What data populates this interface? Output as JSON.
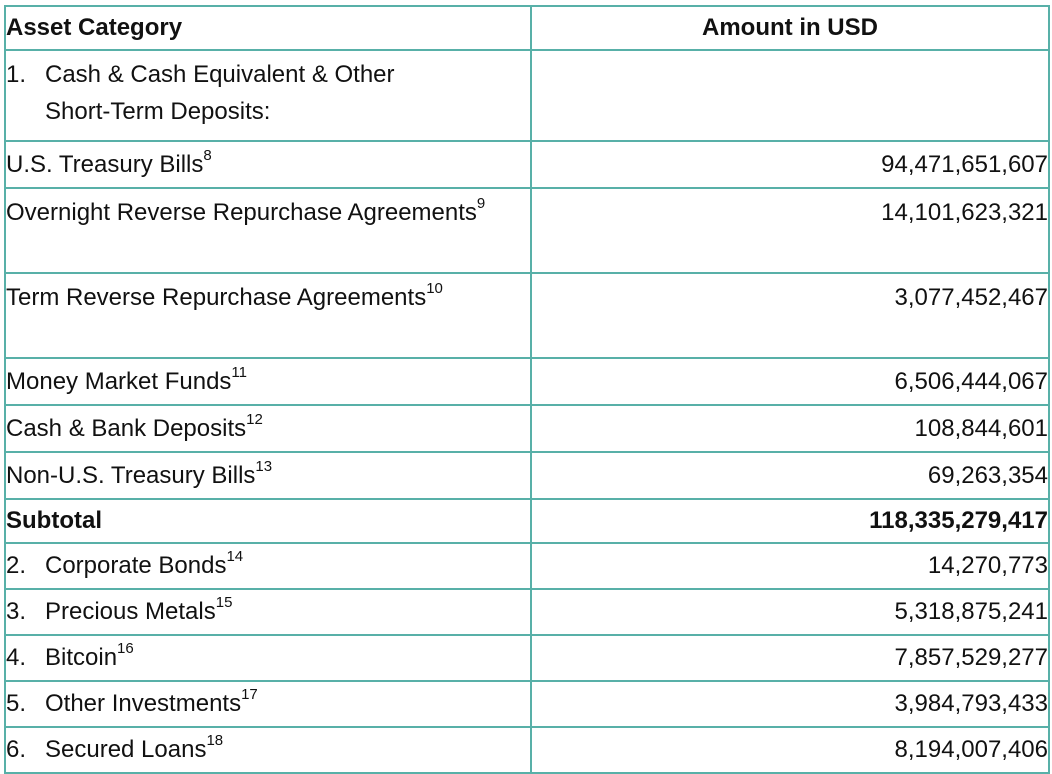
{
  "table": {
    "headers": {
      "category": "Asset Category",
      "amount": "Amount in USD"
    },
    "rows": [
      {
        "number": "1.",
        "label": "Cash & Cash Equivalent & Other Short-Term Deposits:",
        "note": "",
        "amount": ""
      },
      {
        "number": "",
        "label": "U.S. Treasury Bills",
        "note": "8",
        "amount": "94,471,651,607"
      },
      {
        "number": "",
        "label": "Overnight Reverse Repurchase Agreements",
        "note": "9",
        "amount": "14,101,623,321"
      },
      {
        "number": "",
        "label": "Term Reverse Repurchase Agreements",
        "note": "10",
        "amount": "3,077,452,467"
      },
      {
        "number": "",
        "label": "Money Market Funds",
        "note": "11",
        "amount": "6,506,444,067"
      },
      {
        "number": "",
        "label": "Cash & Bank Deposits",
        "note": "12",
        "amount": "108,844,601"
      },
      {
        "number": "",
        "label": "Non-U.S. Treasury Bills",
        "note": "13",
        "amount": "69,263,354"
      },
      {
        "number": "",
        "label": "Subtotal",
        "note": "",
        "amount": "118,335,279,417"
      },
      {
        "number": "2.",
        "label": "Corporate Bonds",
        "note": "14",
        "amount": "14,270,773"
      },
      {
        "number": "3.",
        "label": "Precious Metals",
        "note": "15",
        "amount": "5,318,875,241"
      },
      {
        "number": "4.",
        "label": "Bitcoin",
        "note": "16",
        "amount": "7,857,529,277"
      },
      {
        "number": "5.",
        "label": "Other Investments",
        "note": "17",
        "amount": "3,984,793,433"
      },
      {
        "number": "6.",
        "label": "Secured Loans",
        "note": "18",
        "amount": "8,194,007,406"
      }
    ]
  },
  "colors": {
    "border": "#58b0a8",
    "text": "#111111",
    "background": "#ffffff"
  }
}
